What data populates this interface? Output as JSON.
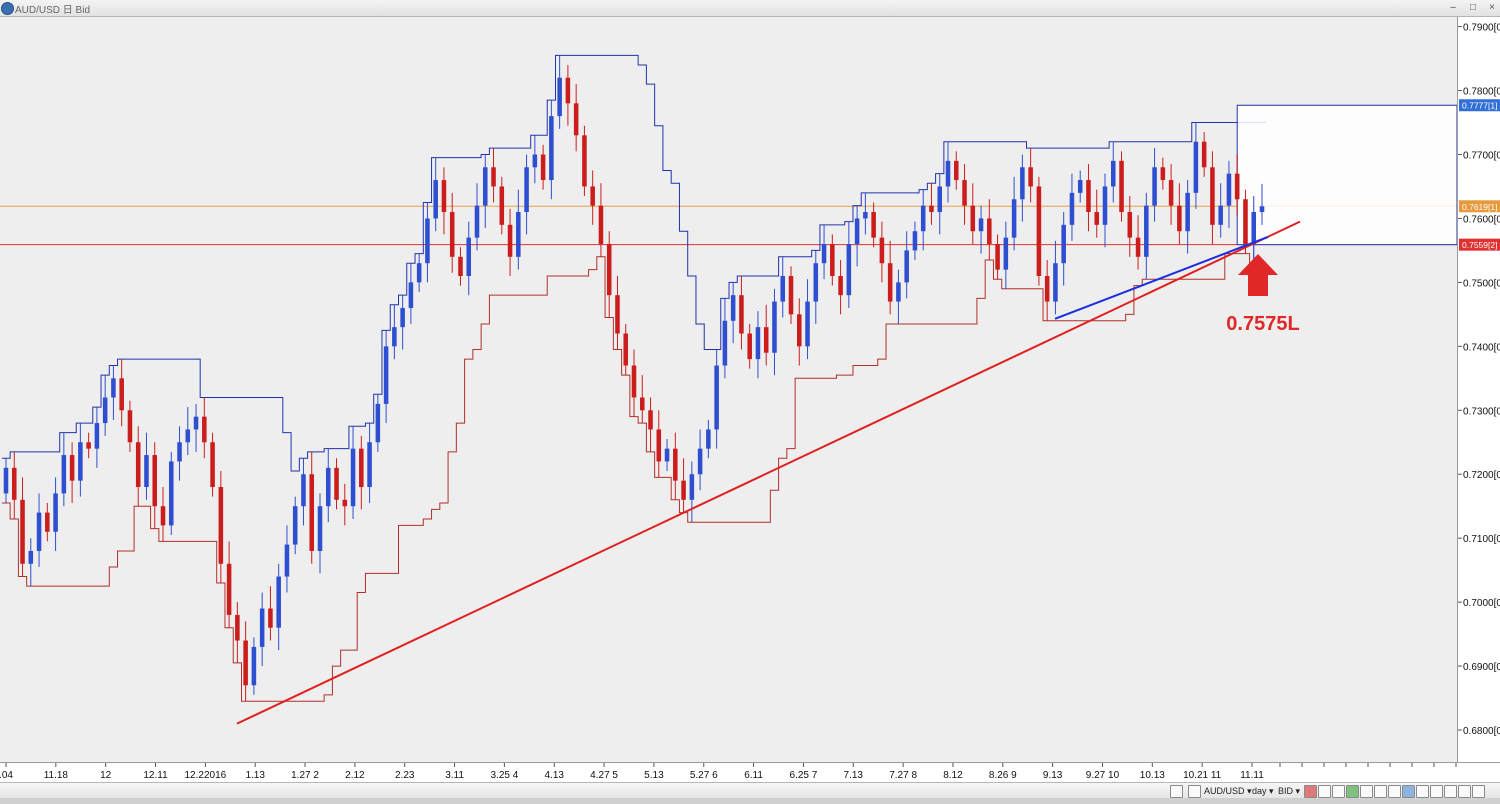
{
  "window": {
    "title": "AUD/USD 日 Bid"
  },
  "chart_data": {
    "type": "candlestick",
    "symbol": "AUD/USD",
    "ylim": [
      0.675,
      0.7915
    ],
    "price_ticks": [
      "0.7900[0",
      "0.7800[0",
      "0.7700[0",
      "0.7600[0",
      "0.7500[0",
      "0.7400[0",
      "0.7300[0",
      "0.7200[0",
      "0.7100[0",
      "0.7000[0",
      "0.6900[0",
      "0.6800[0"
    ],
    "price_tick_values": [
      0.79,
      0.78,
      0.77,
      0.76,
      0.75,
      0.74,
      0.73,
      0.72,
      0.71,
      0.7,
      0.69,
      0.68
    ],
    "date_labels": [
      ".04",
      "11.18",
      "12",
      "12.11",
      "12.22016",
      "1.13",
      "1.27 2",
      "2.12",
      "2.23",
      "3.11",
      "3.25  4",
      "4.13",
      "4.27 5",
      "5.13",
      "5.27 6",
      "6.11",
      "6.25 7",
      "7.13",
      "7.27 8",
      "8.12",
      "8.26 9",
      "9.13",
      "9.27 10",
      "10.13",
      "10.21 11",
      "11.11"
    ],
    "markers": [
      {
        "label": "0.7777[1]",
        "value": 0.7777,
        "color": "#2f6fd6"
      },
      {
        "label": "0.7619[1]",
        "value": 0.7619,
        "color": "#e69a3c"
      },
      {
        "label": "0.7559[2]",
        "value": 0.7559,
        "color": "#e03030"
      }
    ],
    "current_price_line": 0.7619,
    "support_line": 0.7559,
    "resistance_box_top": 0.7777,
    "trendlines": [
      {
        "color": "#e02020",
        "from": [
          0,
          0.681
        ],
        "to": [
          1,
          0.7595
        ]
      },
      {
        "color": "#1a2ee0",
        "from": [
          0,
          0.7443
        ],
        "to": [
          1,
          0.7571
        ]
      }
    ],
    "annotation": {
      "text": "0.7575L",
      "color": "#e02828"
    },
    "closes": [
      0.721,
      0.716,
      0.706,
      0.708,
      0.714,
      0.711,
      0.717,
      0.723,
      0.719,
      0.725,
      0.724,
      0.728,
      0.732,
      0.735,
      0.73,
      0.725,
      0.718,
      0.723,
      0.715,
      0.712,
      0.722,
      0.725,
      0.727,
      0.729,
      0.725,
      0.718,
      0.706,
      0.698,
      0.694,
      0.687,
      0.693,
      0.699,
      0.696,
      0.704,
      0.709,
      0.715,
      0.72,
      0.708,
      0.715,
      0.721,
      0.716,
      0.715,
      0.724,
      0.718,
      0.725,
      0.731,
      0.74,
      0.743,
      0.746,
      0.75,
      0.753,
      0.76,
      0.766,
      0.761,
      0.754,
      0.751,
      0.757,
      0.762,
      0.768,
      0.765,
      0.759,
      0.754,
      0.761,
      0.768,
      0.77,
      0.766,
      0.776,
      0.782,
      0.778,
      0.773,
      0.765,
      0.762,
      0.756,
      0.748,
      0.742,
      0.737,
      0.732,
      0.73,
      0.727,
      0.722,
      0.724,
      0.719,
      0.716,
      0.72,
      0.724,
      0.727,
      0.737,
      0.744,
      0.748,
      0.742,
      0.738,
      0.743,
      0.739,
      0.747,
      0.751,
      0.745,
      0.74,
      0.747,
      0.753,
      0.756,
      0.751,
      0.748,
      0.756,
      0.76,
      0.761,
      0.757,
      0.753,
      0.747,
      0.75,
      0.755,
      0.758,
      0.762,
      0.761,
      0.765,
      0.769,
      0.766,
      0.762,
      0.758,
      0.76,
      0.756,
      0.752,
      0.757,
      0.763,
      0.768,
      0.765,
      0.751,
      0.747,
      0.753,
      0.759,
      0.764,
      0.766,
      0.761,
      0.759,
      0.765,
      0.769,
      0.761,
      0.757,
      0.754,
      0.762,
      0.768,
      0.766,
      0.762,
      0.758,
      0.764,
      0.772,
      0.768,
      0.759,
      0.762,
      0.767,
      0.763,
      0.756,
      0.761,
      0.7619
    ]
  },
  "toolbar": {
    "symbol": "AUD/USD",
    "period": "day",
    "price_type": "BID"
  }
}
